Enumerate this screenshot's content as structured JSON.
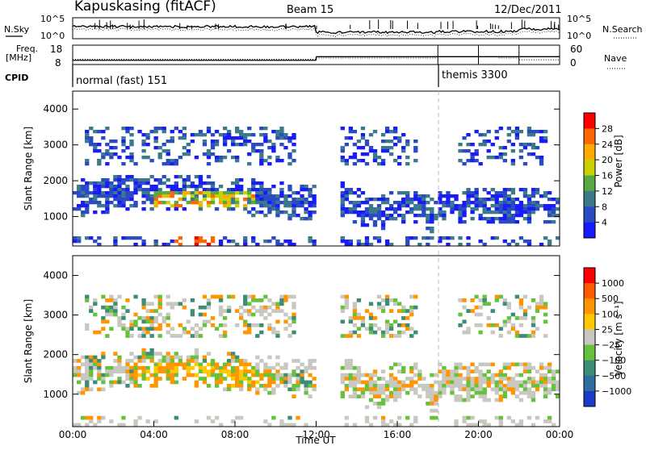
{
  "header": {
    "station": "Kapuskasing (fitACF)",
    "beam": "Beam 15",
    "date": "12/Dec/2011"
  },
  "top_panel": {
    "left_label": "N.Sky",
    "left_ticks": [
      "10^5",
      "10^0"
    ],
    "right_ticks": [
      "10^5",
      "10^0"
    ],
    "right_label": "N.Search"
  },
  "freq_panel": {
    "left_label_1": "Freq.",
    "left_label_2": "[MHz]",
    "left_ticks": [
      "18",
      "8"
    ],
    "right_ticks": [
      "60",
      "0"
    ],
    "right_label": "Nave",
    "freq_segments_mhz": [
      [
        0,
        12,
        10.3
      ],
      [
        12,
        24,
        13.5
      ]
    ],
    "nave_segments": [
      [
        0,
        12,
        24
      ],
      [
        12,
        18,
        30
      ],
      [
        18,
        21,
        36
      ],
      [
        21,
        22,
        30
      ],
      [
        22,
        24,
        22
      ]
    ]
  },
  "cpid": {
    "label": "CPID",
    "modes": [
      {
        "name": "normal (fast) 151",
        "start": 0,
        "end": 18
      },
      {
        "name": "themis 3300",
        "start": 18,
        "end": 24
      }
    ]
  },
  "chart_data": [
    {
      "type": "heatmap",
      "name": "Power",
      "ylabel": "Slant Range [km]",
      "xlim": [
        0,
        24
      ],
      "ylim": [
        180,
        4500
      ],
      "yticks": [
        1000,
        2000,
        3000,
        4000
      ],
      "colorbar_label": "Power [dB]",
      "colorbar_ticks": [
        "4",
        "8",
        "12",
        "16",
        "20",
        "24",
        "28"
      ],
      "colors": [
        "#1a1aff",
        "#2b4bc4",
        "#3a7a8a",
        "#55aa44",
        "#c8d200",
        "#ffaa00",
        "#ff6600",
        "#ff0000"
      ]
    },
    {
      "type": "heatmap",
      "name": "Velocity",
      "ylabel": "Slant Range [km]",
      "xlabel": "Time UT",
      "xlim": [
        0,
        24
      ],
      "ylim": [
        180,
        4500
      ],
      "yticks": [
        1000,
        2000,
        3000,
        4000
      ],
      "xticks": [
        "00:00",
        "04:00",
        "08:00",
        "12:00",
        "16:00",
        "20:00",
        "00:00"
      ],
      "colorbar_label": "Velocity [m s⁻¹]",
      "colorbar_ticks": [
        "1000",
        "500",
        "100",
        "25",
        "−25",
        "−100",
        "−500",
        "−1000"
      ],
      "colors": [
        "#1a3cc8",
        "#2f6ea0",
        "#3c8c78",
        "#66c23c",
        "#c8c8c0",
        "#ffc800",
        "#ff9600",
        "#ff5a00",
        "#ff0000"
      ]
    }
  ],
  "colors": {
    "background": "#ffffff",
    "axes": "#000000",
    "ground_scatter": "#c8c8c0",
    "mode_marker": "#bbbbbb"
  }
}
